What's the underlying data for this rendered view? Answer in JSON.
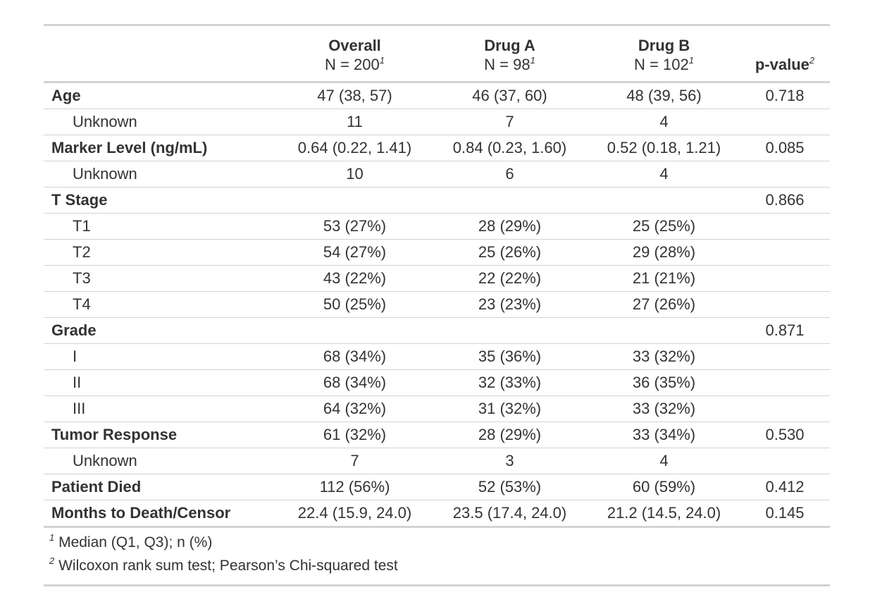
{
  "table": {
    "columns": [
      {
        "title": "Overall",
        "subtitle": "N = 200",
        "mark": "1"
      },
      {
        "title": "Drug A",
        "subtitle": "N = 98",
        "mark": "1"
      },
      {
        "title": "Drug B",
        "subtitle": "N = 102",
        "mark": "1"
      },
      {
        "title": "p-value",
        "mark": "2"
      }
    ],
    "rows": [
      {
        "level": 0,
        "cells": [
          "Age",
          "47 (38, 57)",
          "46 (37, 60)",
          "48 (39, 56)",
          "0.718"
        ]
      },
      {
        "level": 1,
        "cells": [
          "Unknown",
          "11",
          "7",
          "4",
          null
        ]
      },
      {
        "level": 0,
        "cells": [
          "Marker Level (ng/mL)",
          "0.64 (0.22, 1.41)",
          "0.84 (0.23, 1.60)",
          "0.52 (0.18, 1.21)",
          "0.085"
        ]
      },
      {
        "level": 1,
        "cells": [
          "Unknown",
          "10",
          "6",
          "4",
          null
        ]
      },
      {
        "level": 0,
        "cells": [
          "T Stage",
          null,
          null,
          null,
          "0.866"
        ]
      },
      {
        "level": 1,
        "cells": [
          "T1",
          "53 (27%)",
          "28 (29%)",
          "25 (25%)",
          null
        ]
      },
      {
        "level": 1,
        "cells": [
          "T2",
          "54 (27%)",
          "25 (26%)",
          "29 (28%)",
          null
        ]
      },
      {
        "level": 1,
        "cells": [
          "T3",
          "43 (22%)",
          "22 (22%)",
          "21 (21%)",
          null
        ]
      },
      {
        "level": 1,
        "cells": [
          "T4",
          "50 (25%)",
          "23 (23%)",
          "27 (26%)",
          null
        ]
      },
      {
        "level": 0,
        "cells": [
          "Grade",
          null,
          null,
          null,
          "0.871"
        ]
      },
      {
        "level": 1,
        "cells": [
          "I",
          "68 (34%)",
          "35 (36%)",
          "33 (32%)",
          null
        ]
      },
      {
        "level": 1,
        "cells": [
          "II",
          "68 (34%)",
          "32 (33%)",
          "36 (35%)",
          null
        ]
      },
      {
        "level": 1,
        "cells": [
          "III",
          "64 (32%)",
          "31 (32%)",
          "33 (32%)",
          null
        ]
      },
      {
        "level": 0,
        "cells": [
          "Tumor Response",
          "61 (32%)",
          "28 (29%)",
          "33 (34%)",
          "0.530"
        ]
      },
      {
        "level": 1,
        "cells": [
          "Unknown",
          "7",
          "3",
          "4",
          null
        ]
      },
      {
        "level": 0,
        "cells": [
          "Patient Died",
          "112 (56%)",
          "52 (53%)",
          "60 (59%)",
          "0.412"
        ]
      },
      {
        "level": 0,
        "cells": [
          "Months to Death/Censor",
          "22.4 (15.9, 24.0)",
          "23.5 (17.4, 24.0)",
          "21.2 (14.5, 24.0)",
          "0.145"
        ]
      }
    ],
    "footnotes": [
      {
        "mark": "1",
        "text": "Median (Q1, Q3); n (%)"
      },
      {
        "mark": "2",
        "text": "Wilcoxon rank sum test; Pearson’s Chi-squared test"
      }
    ]
  }
}
